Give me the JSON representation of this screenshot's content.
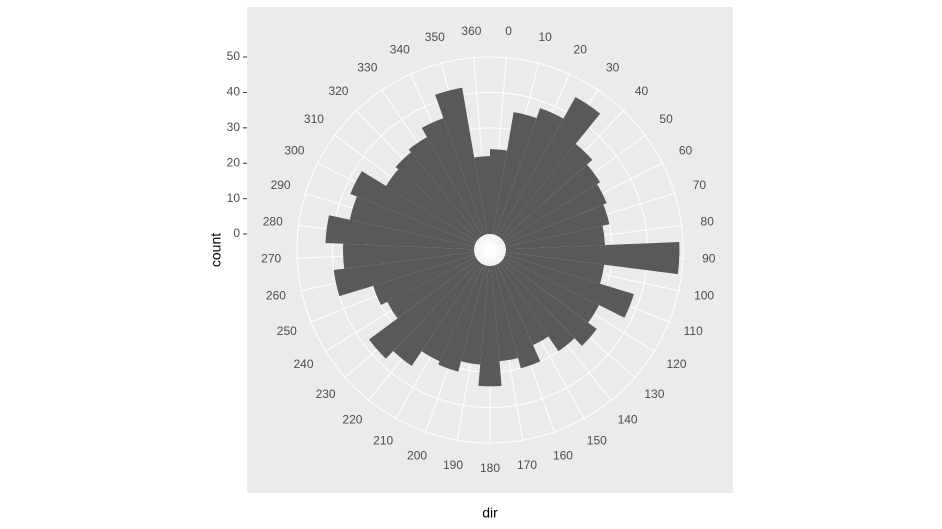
{
  "chart_data": {
    "type": "polar_histogram",
    "x_label": "dir",
    "y_label": "count",
    "bins": [
      -5,
      5,
      15,
      25,
      35,
      45,
      55,
      65,
      75,
      85,
      95,
      105,
      115,
      125,
      135,
      145,
      155,
      165,
      175,
      185,
      195,
      205,
      215,
      225,
      235,
      245,
      255,
      265,
      275,
      285,
      295,
      305,
      315,
      325,
      335,
      345,
      355,
      365
    ],
    "values": [
      24,
      35,
      38,
      45,
      34,
      32,
      31,
      30,
      28,
      49,
      28,
      38,
      30,
      33,
      30,
      25,
      30,
      27,
      34,
      28,
      31,
      30,
      35,
      38,
      28,
      30,
      40,
      37,
      42,
      36,
      38,
      30,
      31,
      32,
      35,
      42,
      22
    ],
    "color": "#595959",
    "xlim": [
      -5,
      365
    ],
    "xticks": [
      0,
      10,
      20,
      30,
      40,
      50,
      60,
      70,
      80,
      90,
      100,
      110,
      120,
      130,
      140,
      150,
      160,
      170,
      180,
      190,
      200,
      210,
      220,
      230,
      240,
      250,
      260,
      270,
      280,
      290,
      300,
      310,
      320,
      330,
      340,
      350,
      360
    ],
    "ylim": [
      -4.5,
      50.4
    ],
    "yticks": [
      0,
      10,
      20,
      30,
      40,
      50
    ],
    "grid": true
  }
}
